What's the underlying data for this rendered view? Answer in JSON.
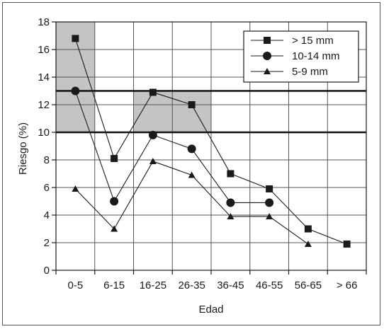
{
  "chart_data": {
    "type": "line",
    "xlabel": "Edad",
    "ylabel": "Riesgo (%)",
    "categories": [
      "0-5",
      "6-15",
      "16-25",
      "26-35",
      "36-45",
      "46-55",
      "56-65",
      "> 66"
    ],
    "ylim": [
      0,
      18
    ],
    "yticks": [
      0,
      2,
      4,
      6,
      8,
      10,
      12,
      14,
      16,
      18
    ],
    "grid": true,
    "legend_position": "top-right",
    "reference_lines": [
      10,
      13
    ],
    "shaded_regions": [
      {
        "categories": [
          "0-5"
        ],
        "y_range": [
          10,
          18
        ]
      },
      {
        "categories": [
          "16-25",
          "26-35"
        ],
        "y_range": [
          10,
          13
        ]
      }
    ],
    "series": [
      {
        "name": "> 15 mm",
        "marker": "square",
        "values": [
          16.8,
          8.1,
          12.9,
          12.0,
          7.0,
          5.9,
          3.0,
          1.9
        ]
      },
      {
        "name": "10-14 mm",
        "marker": "circle",
        "values": [
          13.0,
          5.0,
          9.8,
          8.8,
          4.9,
          4.9,
          null,
          null
        ]
      },
      {
        "name": "5-9 mm",
        "marker": "triangle",
        "values": [
          5.9,
          3.0,
          7.9,
          6.9,
          3.9,
          3.9,
          1.9,
          null
        ]
      }
    ],
    "colors": {
      "line": "#1a1a1a",
      "shade": "#c4c4c4",
      "grid": "#555555",
      "reference": "#111111"
    }
  }
}
